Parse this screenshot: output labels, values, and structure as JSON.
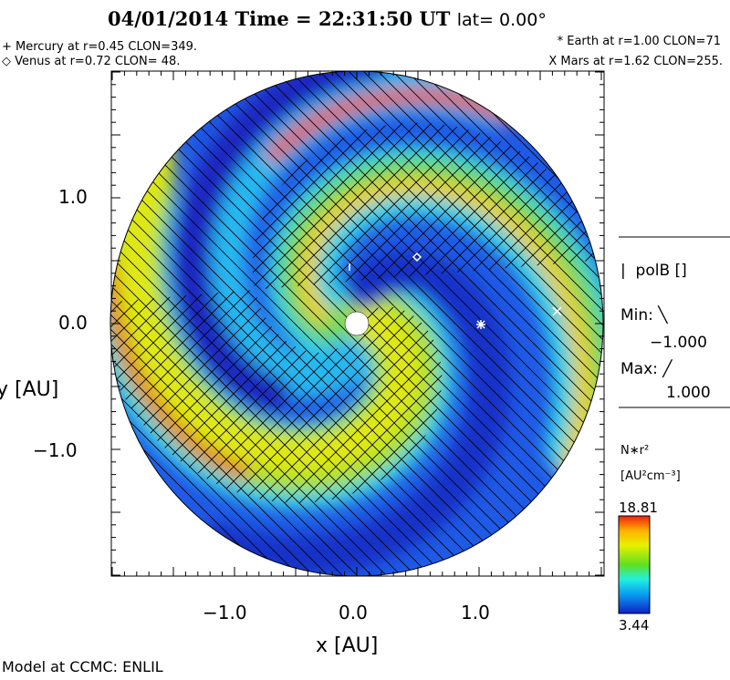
{
  "header": {
    "title": "04/01/2014 Time = 22:31:50 UT",
    "lat": "lat= 0.00°",
    "mercury": "+ Mercury at r=0.45 CLON=349.",
    "venus": "◇ Venus at r=0.72 CLON= 48.",
    "earth": "* Earth at  r=1.00 CLON=71",
    "mars": "X Mars at r=1.62 CLON=255."
  },
  "chart_data": {
    "type": "heatmap",
    "title": "04/01/2014 Time = 22:31:50 UT lat= 0.00°",
    "xlabel": "x [AU]",
    "ylabel": "y [AU]",
    "xlim": [
      -2.0,
      2.0
    ],
    "ylim": [
      -2.0,
      2.0
    ],
    "xticks": [
      "−1.0",
      "0.0",
      "1.0"
    ],
    "yticks": [
      "1.0",
      "0.0",
      "−1.0"
    ],
    "xtick_values": [
      -1.0,
      0.0,
      1.0
    ],
    "ytick_values": [
      1.0,
      0.0,
      -1.0
    ],
    "planets": [
      {
        "name": "Mercury",
        "symbol": "+",
        "r": 0.45,
        "clon": 349
      },
      {
        "name": "Venus",
        "symbol": "◇",
        "r": 0.72,
        "clon": 48
      },
      {
        "name": "Earth",
        "symbol": "*",
        "r": 1.0,
        "clon": 71
      },
      {
        "name": "Mars",
        "symbol": "X",
        "r": 1.62,
        "clon": 255
      }
    ],
    "colorbar": {
      "variable": "N*r²",
      "units": "[AU²cm⁻³]",
      "min": 3.44,
      "max": 18.81,
      "min_label": "3.44",
      "max_label": "18.81"
    },
    "polarity": {
      "variable": "polB []",
      "min_label": "Min:",
      "min_value": "−1.000",
      "max_label": "Max:",
      "max_value": "1.000"
    }
  },
  "legend": {
    "polb": "polB []",
    "min_label": "Min: ╲",
    "min_value": "−1.000",
    "max_label": "Max: ╱",
    "max_value": "1.000",
    "var": "N∗r²",
    "units": "[AU²cm⁻³]",
    "cmax": "18.81",
    "cmin": "3.44"
  },
  "footer": "Model at CCMC: ENLIL"
}
